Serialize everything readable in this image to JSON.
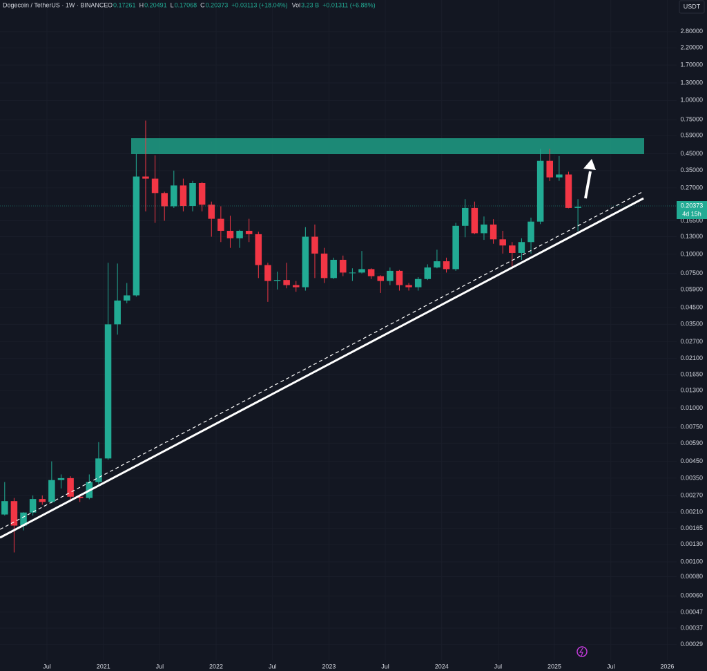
{
  "header": {
    "symbol": "Dogecoin / TetherUS · 1W · BINANCE",
    "ohlc": [
      {
        "key": "O",
        "value": "0.17261"
      },
      {
        "key": "H",
        "value": "0.20491"
      },
      {
        "key": "L",
        "value": "0.17068"
      },
      {
        "key": "C",
        "value": "0.20373"
      }
    ],
    "change": "+0.03113 (+18.04%)",
    "volume_key": "Vol",
    "volume": "3.23 B",
    "volume_change": "+0.01311 (+6.88%)",
    "currency": "USDT"
  },
  "price_tag": {
    "price": "0.20373",
    "countdown": "4d 15h"
  },
  "chart_data": {
    "type": "candlestick",
    "log_scale": true,
    "up_color": "#22ab94",
    "down_color": "#f23645",
    "x": [
      "2020-02",
      "2020-03",
      "2020-04",
      "2020-05",
      "2020-06",
      "2020-07",
      "2020-08",
      "2020-09",
      "2020-10",
      "2020-11",
      "2020-12",
      "2021-01",
      "2021-02",
      "2021-03",
      "2021-04",
      "2021-05",
      "2021-06",
      "2021-07",
      "2021-08",
      "2021-09",
      "2021-10",
      "2021-11",
      "2021-12",
      "2022-01",
      "2022-02",
      "2022-03",
      "2022-04",
      "2022-05",
      "2022-06",
      "2022-07",
      "2022-08",
      "2022-09",
      "2022-10",
      "2022-11",
      "2022-12",
      "2023-01",
      "2023-02",
      "2023-03",
      "2023-04",
      "2023-05",
      "2023-06",
      "2023-07",
      "2023-08",
      "2023-09",
      "2023-10",
      "2023-11",
      "2023-12",
      "2024-01",
      "2024-02",
      "2024-03",
      "2024-04",
      "2024-05",
      "2024-06",
      "2024-07",
      "2024-08",
      "2024-09",
      "2024-10",
      "2024-11",
      "2024-12",
      "2025-01",
      "2025-02",
      "2025-03"
    ],
    "open": [
      0.00203,
      0.00248,
      0.00172,
      0.00209,
      0.00256,
      0.00245,
      0.0034,
      0.0035,
      0.00265,
      0.0026,
      0.0033,
      0.0047,
      0.035,
      0.05,
      0.054,
      0.32,
      0.31,
      0.25,
      0.205,
      0.28,
      0.206,
      0.29,
      0.21,
      0.17,
      0.142,
      0.127,
      0.142,
      0.135,
      0.085,
      0.067,
      0.068,
      0.063,
      0.061,
      0.13,
      0.101,
      0.07,
      0.092,
      0.076,
      0.076,
      0.08,
      0.072,
      0.067,
      0.078,
      0.063,
      0.061,
      0.069,
      0.082,
      0.09,
      0.08,
      0.153,
      0.2,
      0.137,
      0.156,
      0.125,
      0.114,
      0.102,
      0.12,
      0.163,
      0.405,
      0.316,
      0.33,
      0.2
    ],
    "high": [
      0.0033,
      0.0026,
      0.0021,
      0.0027,
      0.0027,
      0.0045,
      0.0037,
      0.0036,
      0.00275,
      0.0037,
      0.006,
      0.088,
      0.087,
      0.065,
      0.45,
      0.74,
      0.44,
      0.255,
      0.35,
      0.31,
      0.3,
      0.295,
      0.22,
      0.205,
      0.178,
      0.144,
      0.17,
      0.14,
      0.088,
      0.077,
      0.088,
      0.067,
      0.15,
      0.156,
      0.11,
      0.095,
      0.098,
      0.081,
      0.105,
      0.081,
      0.073,
      0.082,
      0.079,
      0.065,
      0.071,
      0.086,
      0.107,
      0.095,
      0.16,
      0.228,
      0.22,
      0.176,
      0.169,
      0.142,
      0.12,
      0.127,
      0.173,
      0.484,
      0.484,
      0.435,
      0.344,
      0.228
    ],
    "low": [
      0.002,
      0.00115,
      0.0016,
      0.002,
      0.00235,
      0.0024,
      0.003,
      0.0025,
      0.00245,
      0.00255,
      0.0032,
      0.0046,
      0.03,
      0.048,
      0.053,
      0.19,
      0.16,
      0.165,
      0.2,
      0.19,
      0.19,
      0.19,
      0.13,
      0.12,
      0.11,
      0.11,
      0.12,
      0.07,
      0.049,
      0.059,
      0.06,
      0.057,
      0.058,
      0.07,
      0.065,
      0.069,
      0.072,
      0.067,
      0.075,
      0.069,
      0.056,
      0.063,
      0.058,
      0.058,
      0.058,
      0.068,
      0.081,
      0.076,
      0.078,
      0.129,
      0.135,
      0.124,
      0.117,
      0.101,
      0.081,
      0.092,
      0.101,
      0.157,
      0.299,
      0.3,
      0.199,
      0.142
    ],
    "close": [
      0.00248,
      0.00172,
      0.00209,
      0.00256,
      0.00245,
      0.0034,
      0.0035,
      0.00265,
      0.0026,
      0.0033,
      0.0047,
      0.035,
      0.05,
      0.054,
      0.32,
      0.31,
      0.25,
      0.205,
      0.28,
      0.206,
      0.29,
      0.21,
      0.17,
      0.142,
      0.127,
      0.142,
      0.135,
      0.085,
      0.067,
      0.068,
      0.063,
      0.061,
      0.13,
      0.101,
      0.07,
      0.092,
      0.076,
      0.076,
      0.08,
      0.072,
      0.067,
      0.078,
      0.063,
      0.061,
      0.069,
      0.082,
      0.09,
      0.08,
      0.153,
      0.2,
      0.137,
      0.156,
      0.125,
      0.114,
      0.102,
      0.12,
      0.163,
      0.405,
      0.316,
      0.33,
      0.2,
      0.20373
    ],
    "xlim": [
      "2020-02",
      "2026-02"
    ],
    "xticks": [
      {
        "value": "2020-07",
        "label": "Jul"
      },
      {
        "value": "2021-01",
        "label": "2021"
      },
      {
        "value": "2021-07",
        "label": "Jul"
      },
      {
        "value": "2022-01",
        "label": "2022"
      },
      {
        "value": "2022-07",
        "label": "Jul"
      },
      {
        "value": "2023-01",
        "label": "2023"
      },
      {
        "value": "2023-07",
        "label": "Jul"
      },
      {
        "value": "2024-01",
        "label": "2024"
      },
      {
        "value": "2024-07",
        "label": "Jul"
      },
      {
        "value": "2025-01",
        "label": "2025"
      },
      {
        "value": "2025-07",
        "label": "Jul"
      },
      {
        "value": "2026-01",
        "label": "2026"
      }
    ],
    "ylim": [
      0.00023,
      4.5
    ],
    "yticks": [
      {
        "value": 2.8,
        "label": "2.80000"
      },
      {
        "value": 2.2,
        "label": "2.20000"
      },
      {
        "value": 1.7,
        "label": "1.70000"
      },
      {
        "value": 1.3,
        "label": "1.30000"
      },
      {
        "value": 1,
        "label": "1.00000"
      },
      {
        "value": 0.75,
        "label": "0.75000"
      },
      {
        "value": 0.59,
        "label": "0.59000"
      },
      {
        "value": 0.45,
        "label": "0.45000"
      },
      {
        "value": 0.35,
        "label": "0.35000"
      },
      {
        "value": 0.27,
        "label": "0.27000"
      },
      {
        "value": 0.165,
        "label": "0.16500"
      },
      {
        "value": 0.13,
        "label": "0.13000"
      },
      {
        "value": 0.1,
        "label": "0.10000"
      },
      {
        "value": 0.075,
        "label": "0.07500"
      },
      {
        "value": 0.059,
        "label": "0.05900"
      },
      {
        "value": 0.045,
        "label": "0.04500"
      },
      {
        "value": 0.035,
        "label": "0.03500"
      },
      {
        "value": 0.027,
        "label": "0.02700"
      },
      {
        "value": 0.021,
        "label": "0.02100"
      },
      {
        "value": 0.0165,
        "label": "0.01650"
      },
      {
        "value": 0.013,
        "label": "0.01300"
      },
      {
        "value": 0.01,
        "label": "0.01000"
      },
      {
        "value": 0.0075,
        "label": "0.00750"
      },
      {
        "value": 0.0059,
        "label": "0.00590"
      },
      {
        "value": 0.0045,
        "label": "0.00450"
      },
      {
        "value": 0.0035,
        "label": "0.00350"
      },
      {
        "value": 0.0027,
        "label": "0.00270"
      },
      {
        "value": 0.0021,
        "label": "0.00210"
      },
      {
        "value": 0.00165,
        "label": "0.00165"
      },
      {
        "value": 0.0013,
        "label": "0.00130"
      },
      {
        "value": 0.001,
        "label": "0.00100"
      },
      {
        "value": 0.0008,
        "label": "0.00080"
      },
      {
        "value": 0.0006,
        "label": "0.00060"
      },
      {
        "value": 0.00047,
        "label": "0.00047"
      },
      {
        "value": 0.00037,
        "label": "0.00037"
      },
      {
        "value": 0.00029,
        "label": "0.00029"
      }
    ]
  }
}
